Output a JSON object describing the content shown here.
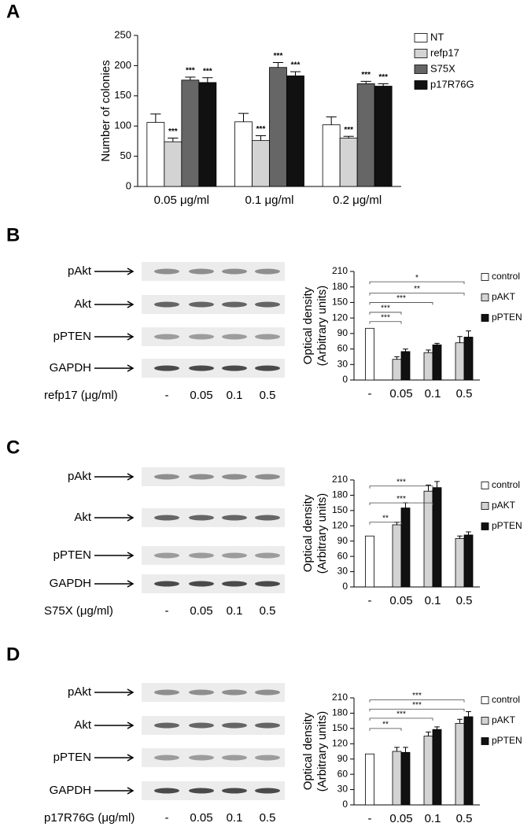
{
  "chart_data": [
    {
      "type": "bar",
      "panel": "A",
      "ylabel": "Number of colonies",
      "categories": [
        "0.05  μg/ml",
        "0.1  μg/ml",
        "0.2  μg/ml"
      ],
      "ylim": [
        0,
        250
      ],
      "yticks": [
        0,
        50,
        100,
        150,
        200,
        250
      ],
      "legend": "right",
      "series": [
        {
          "name": "NT",
          "color": "#ffffff",
          "values": [
            106,
            107,
            102
          ],
          "errors": [
            14,
            14,
            13
          ]
        },
        {
          "name": "refp17",
          "color": "#d3d3d3",
          "values": [
            74,
            76,
            80
          ],
          "errors": [
            6,
            8,
            3
          ],
          "labels": [
            "***",
            "***",
            "***"
          ]
        },
        {
          "name": "S75X",
          "color": "#666666",
          "values": [
            176,
            197,
            170
          ],
          "errors": [
            5,
            8,
            4
          ],
          "labels": [
            "***",
            "***",
            "***"
          ]
        },
        {
          "name": "p17R76G",
          "color": "#111111",
          "values": [
            172,
            183,
            166
          ],
          "errors": [
            8,
            7,
            4
          ],
          "labels": [
            "***",
            "***",
            "***"
          ]
        }
      ]
    },
    {
      "type": "bar",
      "panel": "B",
      "ylabel": [
        "Optical density",
        "(Arbitrary units)"
      ],
      "categories": [
        "-",
        "0.05",
        "0.1",
        "0.5"
      ],
      "ylim": [
        0,
        210
      ],
      "yticks": [
        0,
        30,
        60,
        90,
        120,
        150,
        180,
        210
      ],
      "legend": "right",
      "series": [
        {
          "name": "control",
          "color": "#ffffff",
          "values": [
            100,
            null,
            null,
            null
          ],
          "errors": [
            null,
            null,
            null,
            null
          ]
        },
        {
          "name": "pAKT",
          "color": "#d3d3d3",
          "values": [
            null,
            40,
            53,
            72
          ],
          "errors": [
            null,
            5,
            5,
            12
          ]
        },
        {
          "name": "pPTEN",
          "color": "#111111",
          "values": [
            null,
            55,
            68,
            83
          ],
          "errors": [
            null,
            5,
            3,
            12
          ]
        }
      ],
      "brackets": [
        {
          "label": "***",
          "to": 1,
          "y": 113
        },
        {
          "label": "***",
          "to": 1,
          "y": 131
        },
        {
          "label": "***",
          "to": 2,
          "y": 150
        },
        {
          "label": "**",
          "to": 3,
          "y": 168
        },
        {
          "label": "*",
          "to": 3,
          "y": 190
        }
      ]
    },
    {
      "type": "bar",
      "panel": "C",
      "ylabel": [
        "Optical density",
        "(Arbitrary units)"
      ],
      "categories": [
        "-",
        "0.05",
        "0.1",
        "0.5"
      ],
      "ylim": [
        0,
        210
      ],
      "yticks": [
        0,
        30,
        60,
        90,
        120,
        150,
        180,
        210
      ],
      "legend": "right",
      "series": [
        {
          "name": "control",
          "color": "#ffffff",
          "values": [
            100,
            null,
            null,
            null
          ],
          "errors": [
            null,
            null,
            null,
            null
          ]
        },
        {
          "name": "pAKT",
          "color": "#d3d3d3",
          "values": [
            null,
            122,
            188,
            95
          ],
          "errors": [
            null,
            5,
            12,
            5
          ]
        },
        {
          "name": "pPTEN",
          "color": "#111111",
          "values": [
            null,
            155,
            195,
            102
          ],
          "errors": [
            null,
            10,
            12,
            6
          ]
        }
      ],
      "brackets": [
        {
          "label": "**",
          "to": 1,
          "y": 127
        },
        {
          "label": "***",
          "to": 2,
          "y": 165
        },
        {
          "label": "***",
          "to": 2,
          "y": 198
        }
      ]
    },
    {
      "type": "bar",
      "panel": "D",
      "ylabel": [
        "Optical density",
        "(Arbitrary units)"
      ],
      "categories": [
        "-",
        "0.05",
        "0.1",
        "0.5"
      ],
      "ylim": [
        0,
        210
      ],
      "yticks": [
        0,
        30,
        60,
        90,
        120,
        150,
        180,
        210
      ],
      "legend": "right",
      "series": [
        {
          "name": "control",
          "color": "#ffffff",
          "values": [
            100,
            null,
            null,
            null
          ],
          "errors": [
            null,
            null,
            null,
            null
          ]
        },
        {
          "name": "pAKT",
          "color": "#d3d3d3",
          "values": [
            null,
            105,
            135,
            160
          ],
          "errors": [
            null,
            8,
            8,
            8
          ]
        },
        {
          "name": "pPTEN",
          "color": "#111111",
          "values": [
            null,
            103,
            148,
            173
          ],
          "errors": [
            null,
            10,
            5,
            10
          ]
        }
      ],
      "brackets": [
        {
          "label": "**",
          "to": 1,
          "y": 150
        },
        {
          "label": "***",
          "to": 2,
          "y": 170
        },
        {
          "label": "***",
          "to": 3,
          "y": 188
        },
        {
          "label": "***",
          "to": 3,
          "y": 206
        }
      ]
    }
  ],
  "blots": [
    {
      "rows": [
        "pAkt",
        "Akt",
        "pPTEN",
        "GAPDH"
      ],
      "xlabel": "refp17 (μg/ml)"
    },
    {
      "rows": [
        "pAkt",
        "Akt",
        "pPTEN",
        "GAPDH"
      ],
      "xlabel": "S75X  (μg/ml)"
    },
    {
      "rows": [
        "pAkt",
        "Akt",
        "pPTEN",
        "GAPDH"
      ],
      "xlabel": "p17R76G (μg/ml)"
    }
  ]
}
